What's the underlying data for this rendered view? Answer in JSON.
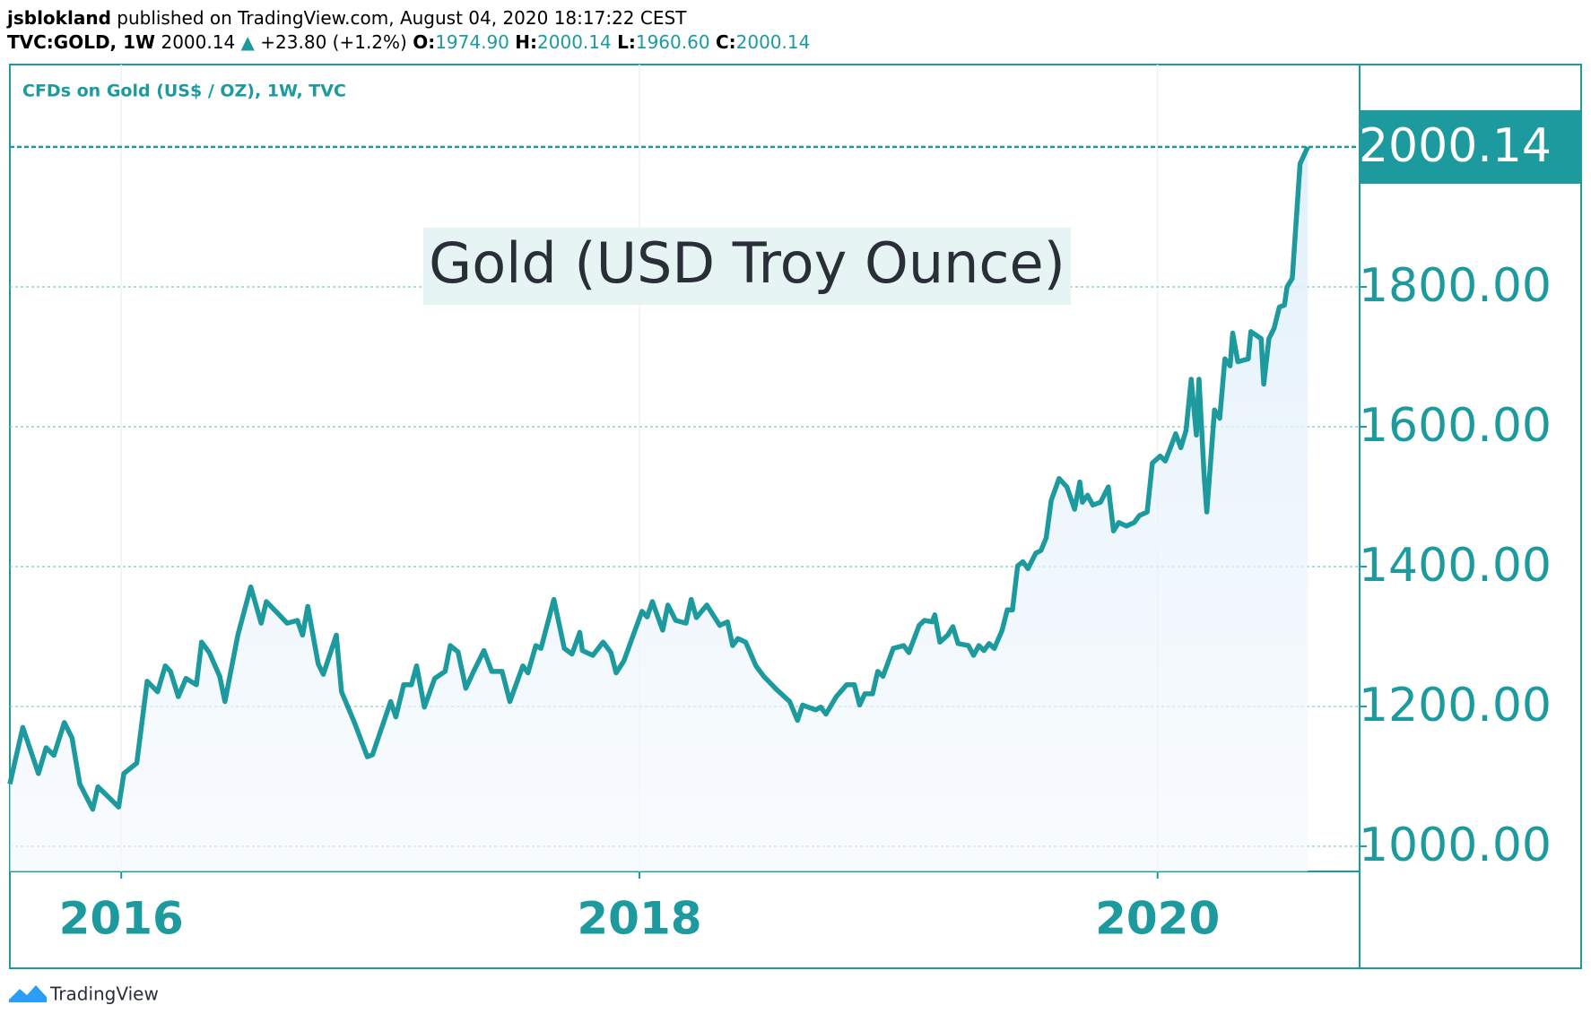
{
  "header": {
    "author": "jsblokland",
    "published": "published on TradingView.com, August 04, 2020 18:17:22 CEST",
    "symbol": "TVC:GOLD, 1W",
    "price": "2000.14",
    "arrow": "▲",
    "change": "+23.80 (+1.2%)",
    "o_label": "O:",
    "open": "1974.90",
    "h_label": "H:",
    "high": "2000.14",
    "l_label": "L:",
    "low": "1960.60",
    "c_label": "C:",
    "close": "2000.14"
  },
  "footer": {
    "brand": "TradingView"
  },
  "chart_data": {
    "type": "line",
    "title": "Gold (USD Troy Ounce)",
    "series": [
      {
        "name": "CFDs on Gold (US$ / OZ), 1W, TVC",
        "color": "#1c9a9e",
        "x": [
          2015.57,
          2015.62,
          2015.68,
          2015.71,
          2015.74,
          2015.78,
          2015.81,
          2015.84,
          2015.89,
          2015.91,
          2015.96,
          2015.99,
          2016.01,
          2016.06,
          2016.1,
          2016.14,
          2016.17,
          2016.19,
          2016.22,
          2016.25,
          2016.29,
          2016.31,
          2016.34,
          2016.38,
          2016.4,
          2016.45,
          2016.5,
          2016.54,
          2016.56,
          2016.61,
          2016.64,
          2016.68,
          2016.7,
          2016.72,
          2016.76,
          2016.78,
          2016.83,
          2016.85,
          2016.9,
          2016.95,
          2016.97,
          2017.04,
          2017.06,
          2017.09,
          2017.12,
          2017.14,
          2017.17,
          2017.21,
          2017.25,
          2017.27,
          2017.3,
          2017.33,
          2017.36,
          2017.4,
          2017.43,
          2017.47,
          2017.5,
          2017.55,
          2017.57,
          2017.6,
          2017.62,
          2017.67,
          2017.71,
          2017.74,
          2017.77,
          2017.78,
          2017.82,
          2017.86,
          2017.89,
          2017.91,
          2017.94,
          2017.98,
          2018.01,
          2018.03,
          2018.05,
          2018.09,
          2018.11,
          2018.14,
          2018.18,
          2018.2,
          2018.22,
          2018.26,
          2018.31,
          2018.34,
          2018.36,
          2018.38,
          2018.41,
          2018.45,
          2018.48,
          2018.53,
          2018.58,
          2018.61,
          2018.63,
          2018.68,
          2018.7,
          2018.72,
          2018.76,
          2018.8,
          2018.83,
          2018.85,
          2018.87,
          2018.9,
          2018.92,
          2018.94,
          2018.98,
          2019.02,
          2019.04,
          2019.08,
          2019.1,
          2019.13,
          2019.14,
          2019.16,
          2019.19,
          2019.21,
          2019.23,
          2019.27,
          2019.29,
          2019.31,
          2019.33,
          2019.35,
          2019.37,
          2019.4,
          2019.42,
          2019.44,
          2019.46,
          2019.48,
          2019.5,
          2019.53,
          2019.55,
          2019.57,
          2019.59,
          2019.62,
          2019.65,
          2019.68,
          2019.7,
          2019.71,
          2019.73,
          2019.75,
          2019.78,
          2019.81,
          2019.83,
          2019.85,
          2019.88,
          2019.91,
          2019.93,
          2019.96,
          2019.98,
          2020.01,
          2020.03,
          2020.05,
          2020.07,
          2020.09,
          2020.11,
          2020.13,
          2020.15,
          2020.16,
          2020.18,
          2020.19,
          2020.22,
          2020.24,
          2020.26,
          2020.28,
          2020.29,
          2020.31,
          2020.35,
          2020.36,
          2020.4,
          2020.41,
          2020.43,
          2020.45,
          2020.47,
          2020.49,
          2020.5,
          2020.52,
          2020.55,
          2020.58
        ],
        "values": [
          1089,
          1170,
          1104,
          1141,
          1130,
          1177,
          1155,
          1089,
          1053,
          1085,
          1067,
          1056,
          1104,
          1119,
          1236,
          1221,
          1258,
          1250,
          1214,
          1240,
          1231,
          1292,
          1277,
          1243,
          1207,
          1302,
          1371,
          1319,
          1350,
          1331,
          1319,
          1323,
          1302,
          1343,
          1261,
          1246,
          1302,
          1221,
          1177,
          1128,
          1131,
          1207,
          1185,
          1231,
          1231,
          1258,
          1199,
          1240,
          1250,
          1287,
          1278,
          1226,
          1250,
          1280,
          1250,
          1250,
          1207,
          1258,
          1248,
          1287,
          1283,
          1353,
          1283,
          1275,
          1306,
          1280,
          1273,
          1292,
          1277,
          1248,
          1265,
          1306,
          1336,
          1328,
          1350,
          1309,
          1345,
          1323,
          1319,
          1353,
          1327,
          1345,
          1316,
          1321,
          1287,
          1297,
          1292,
          1258,
          1243,
          1224,
          1207,
          1180,
          1202,
          1195,
          1199,
          1189,
          1214,
          1231,
          1231,
          1202,
          1218,
          1218,
          1250,
          1243,
          1283,
          1287,
          1277,
          1316,
          1323,
          1321,
          1331,
          1292,
          1302,
          1314,
          1290,
          1287,
          1273,
          1287,
          1280,
          1290,
          1283,
          1309,
          1338,
          1338,
          1401,
          1407,
          1397,
          1419,
          1423,
          1441,
          1495,
          1526,
          1514,
          1482,
          1521,
          1492,
          1502,
          1488,
          1492,
          1514,
          1451,
          1463,
          1458,
          1463,
          1473,
          1478,
          1548,
          1558,
          1551,
          1570,
          1590,
          1570,
          1595,
          1668,
          1588,
          1668,
          1529,
          1478,
          1624,
          1612,
          1697,
          1687,
          1734,
          1693,
          1697,
          1736,
          1726,
          1661,
          1726,
          1741,
          1771,
          1774,
          1800,
          1812,
          1976,
          2000.14
        ]
      }
    ],
    "xlim": [
      2015.57,
      2020.78
    ],
    "xticks": [
      2016,
      2018,
      2020
    ],
    "ylim": [
      964,
      2118
    ],
    "yticks": [
      {
        "value": 1000,
        "label": "1000.00"
      },
      {
        "value": 1200,
        "label": "1200.00"
      },
      {
        "value": 1400,
        "label": "1400.00"
      },
      {
        "value": 1600,
        "label": "1600.00"
      },
      {
        "value": 1800,
        "label": "1800.00"
      }
    ],
    "grid": true
  }
}
